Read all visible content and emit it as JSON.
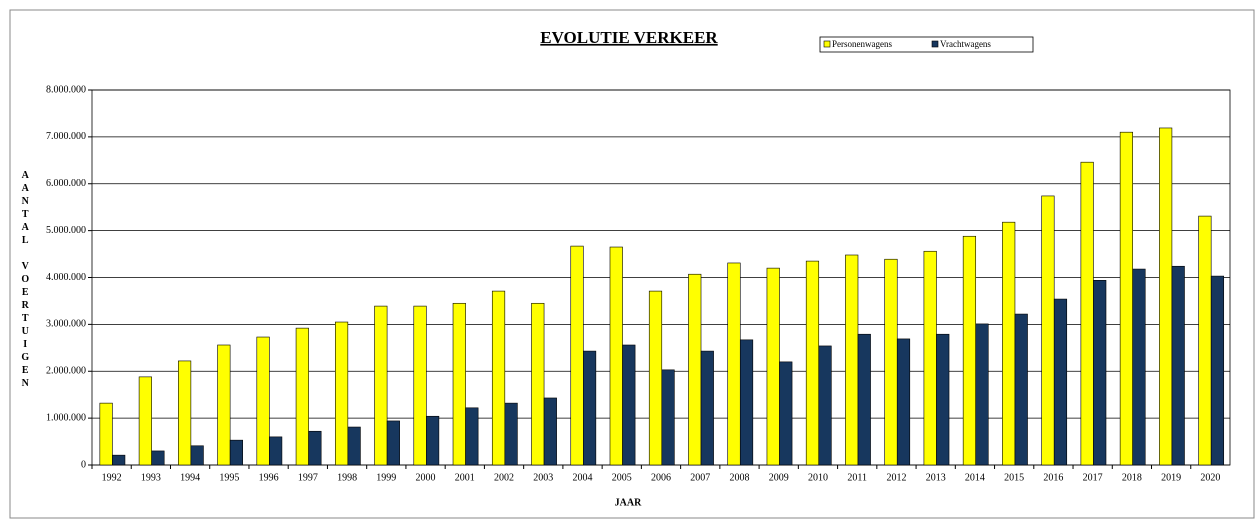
{
  "chart_data": {
    "type": "bar",
    "title": "EVOLUTIE VERKEER",
    "x_label": "JAAR",
    "y_label": "AANTAL VOERTUIGEN",
    "categories": [
      "1992",
      "1993",
      "1994",
      "1995",
      "1996",
      "1997",
      "1998",
      "1999",
      "2000",
      "2001",
      "2002",
      "2003",
      "2004",
      "2005",
      "2006",
      "2007",
      "2008",
      "2009",
      "2010",
      "2011",
      "2012",
      "2013",
      "2014",
      "2015",
      "2016",
      "2017",
      "2018",
      "2019",
      "2020"
    ],
    "series": [
      {
        "name": "Personenwagens",
        "color": "#ffff00",
        "values": [
          1320000,
          1880000,
          2220000,
          2560000,
          2730000,
          2920000,
          3050000,
          3390000,
          3390000,
          3450000,
          3710000,
          3450000,
          4670000,
          4650000,
          3710000,
          4070000,
          4310000,
          4200000,
          4350000,
          4480000,
          4390000,
          4560000,
          4880000,
          5180000,
          5740000,
          6460000,
          7100000,
          7190000,
          5310000
        ]
      },
      {
        "name": "Vrachtwagens",
        "color": "#17375e",
        "values": [
          210000,
          300000,
          410000,
          530000,
          600000,
          720000,
          810000,
          940000,
          1040000,
          1220000,
          1320000,
          1430000,
          2430000,
          2560000,
          2030000,
          2430000,
          2670000,
          2200000,
          2540000,
          2790000,
          2690000,
          2790000,
          3010000,
          3220000,
          3540000,
          3940000,
          4180000,
          4240000,
          4030000
        ]
      }
    ],
    "ylim": [
      0,
      8000000
    ],
    "yticks": [
      0,
      {
        "value": 1000000,
        "label": "1.000.000"
      },
      {
        "value": 2000000,
        "label": "2.000.000"
      },
      {
        "value": 3000000,
        "label": "3.000.000"
      },
      {
        "value": 4000000,
        "label": "4.000.000"
      },
      {
        "value": 5000000,
        "label": "5.000.000"
      },
      {
        "value": 6000000,
        "label": "6.000.000"
      },
      {
        "value": 7000000,
        "label": "7.000.000"
      },
      {
        "value": 8000000,
        "label": "8.000.000"
      }
    ],
    "grid": true,
    "legend": "top"
  }
}
